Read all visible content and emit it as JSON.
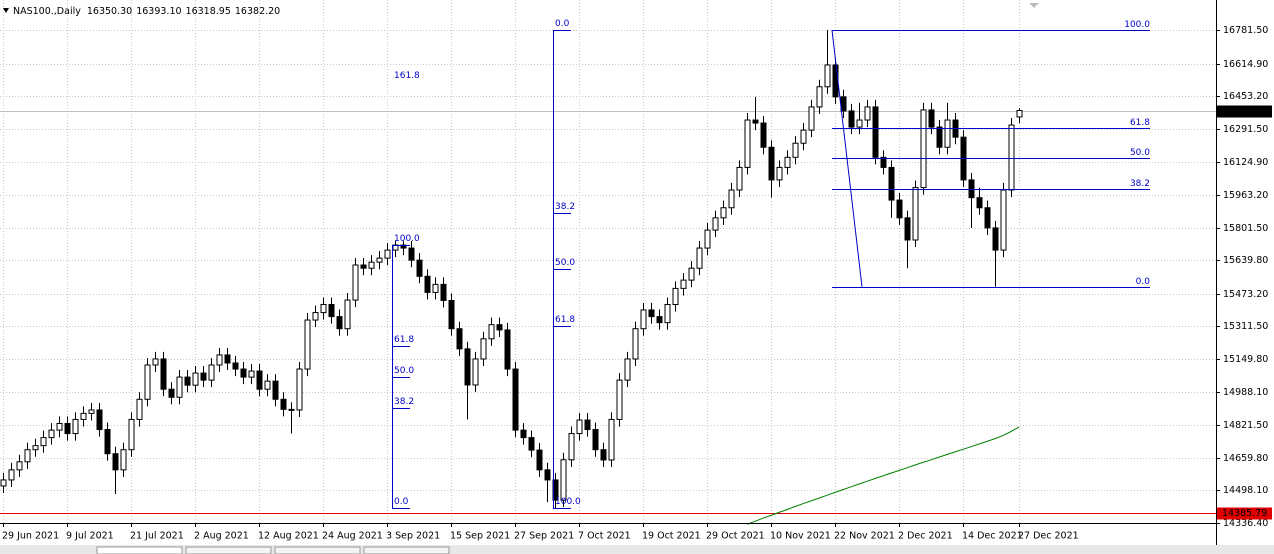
{
  "chart_data": {
    "type": "candlestick",
    "title": "NAS100.,Daily",
    "quote_labels": [
      "16350.30",
      "16393.10",
      "16318.95",
      "16382.20"
    ],
    "categories": [
      "29 Jun 2021",
      null,
      null,
      null,
      null,
      null,
      null,
      null,
      "9 Jul 2021",
      null,
      null,
      null,
      null,
      null,
      null,
      null,
      "21 Jul 2021",
      null,
      null,
      null,
      null,
      null,
      null,
      null,
      "2 Aug 2021",
      null,
      null,
      null,
      null,
      null,
      null,
      null,
      "12 Aug 2021",
      null,
      null,
      null,
      null,
      null,
      null,
      null,
      "24 Aug 2021",
      null,
      null,
      null,
      null,
      null,
      null,
      null,
      "3 Sep 2021",
      null,
      null,
      null,
      null,
      null,
      null,
      null,
      "15 Sep 2021",
      null,
      null,
      null,
      null,
      null,
      null,
      null,
      "27 Sep 2021",
      null,
      null,
      null,
      null,
      null,
      null,
      null,
      "7 Oct 2021",
      null,
      null,
      null,
      null,
      null,
      null,
      null,
      "19 Oct 2021",
      null,
      null,
      null,
      null,
      null,
      null,
      null,
      "29 Oct 2021",
      null,
      null,
      null,
      null,
      null,
      null,
      null,
      "10 Nov 2021",
      null,
      null,
      null,
      null,
      null,
      null,
      null,
      "22 Nov 2021",
      null,
      null,
      null,
      null,
      null,
      null,
      null,
      "2 Dec 2021",
      null,
      null,
      null,
      null,
      null,
      null,
      null,
      "14 Dec 2021",
      null,
      null,
      null,
      null,
      null,
      null,
      "27 Dec 2021"
    ],
    "open": [
      14520,
      14550,
      14600,
      14640,
      14700,
      14720,
      14760,
      14797,
      14830,
      14780,
      14850,
      14880,
      14897,
      14800,
      14680,
      14600,
      14700,
      14850,
      14950,
      15120,
      15150,
      15000,
      14960,
      15060,
      15020,
      15080,
      15045,
      15120,
      15170,
      15130,
      15100,
      15060,
      15090,
      15000,
      15040,
      14950,
      14900,
      14897,
      15100,
      15343,
      15380,
      15420,
      15360,
      15300,
      15442,
      15616,
      15600,
      15630,
      15650,
      15690,
      15715,
      15700,
      15640,
      15560,
      15480,
      15520,
      15440,
      15300,
      15200,
      15021,
      15150,
      15250,
      15320,
      15294,
      15100,
      14797,
      14760,
      14698,
      14600,
      14550,
      14450,
      14650,
      14780,
      14847,
      14800,
      14700,
      14649,
      14850,
      15045,
      15150,
      15300,
      15393,
      15360,
      15330,
      15420,
      15500,
      15541,
      15600,
      15700,
      15789,
      15850,
      15900,
      15988,
      16100,
      16335,
      16320,
      16200,
      16038,
      16100,
      16150,
      16220,
      16285,
      16400,
      16500,
      16608,
      16450,
      16380,
      16300,
      16335,
      16400,
      16150,
      16100,
      15938,
      15850,
      15740,
      16000,
      16385,
      16300,
      16200,
      16335,
      16250,
      16038,
      15950,
      15900,
      15800,
      15690,
      15988,
      16350.3
    ],
    "high": [
      14585,
      14635,
      14675,
      14735,
      14755,
      14795,
      14832,
      14865,
      14865,
      14885,
      14915,
      14932,
      14932,
      14835,
      14715,
      14735,
      14885,
      14985,
      15155,
      15185,
      15185,
      15035,
      15095,
      15095,
      15115,
      15115,
      15155,
      15205,
      15205,
      15165,
      15135,
      15125,
      15125,
      15075,
      15075,
      14985,
      14935,
      15135,
      15378,
      15415,
      15455,
      15455,
      15395,
      15477,
      15651,
      15651,
      15665,
      15685,
      15725,
      15735,
      15735,
      15735,
      15675,
      15595,
      15555,
      15555,
      15475,
      15335,
      15235,
      15185,
      15285,
      15355,
      15355,
      15329,
      15135,
      14832,
      14795,
      14733,
      14635,
      14585,
      14685,
      14815,
      14882,
      14882,
      14835,
      14735,
      14885,
      15080,
      15185,
      15335,
      15428,
      15428,
      15395,
      15455,
      15535,
      15576,
      15635,
      15735,
      15824,
      15885,
      15935,
      16023,
      16135,
      16370,
      16450,
      16355,
      16235,
      16135,
      16185,
      16255,
      16320,
      16435,
      16535,
      16781,
      16643,
      16485,
      16415,
      16420,
      16435,
      16435,
      16185,
      16135,
      15973,
      15885,
      16035,
      16420,
      16420,
      16335,
      16420,
      16370,
      16285,
      16073,
      16000,
      15935,
      15835,
      16023,
      16345,
      16393.1
    ],
    "low": [
      14485,
      14515,
      14565,
      14605,
      14665,
      14685,
      14725,
      14762,
      14745,
      14745,
      14815,
      14845,
      14765,
      14645,
      14480,
      14565,
      14665,
      14815,
      14915,
      15085,
      14965,
      14925,
      14925,
      14985,
      14985,
      15010,
      15010,
      15085,
      15095,
      15065,
      15025,
      15025,
      14965,
      14965,
      14915,
      14865,
      14780,
      14862,
      15065,
      15308,
      15345,
      15325,
      15265,
      15265,
      15407,
      15565,
      15565,
      15595,
      15615,
      15655,
      15665,
      15605,
      15525,
      15445,
      15445,
      15405,
      15265,
      15165,
      14850,
      14986,
      15115,
      15215,
      15259,
      15065,
      14762,
      14725,
      14663,
      14565,
      14440,
      14410,
      14415,
      14615,
      14745,
      14765,
      14665,
      14614,
      14614,
      14815,
      15010,
      15115,
      15265,
      15325,
      15295,
      15295,
      15385,
      15465,
      15506,
      15565,
      15665,
      15754,
      15815,
      15865,
      15953,
      16065,
      16285,
      16165,
      15950,
      16003,
      16065,
      16115,
      16185,
      16250,
      16365,
      16465,
      16415,
      16345,
      16265,
      16265,
      16300,
      16115,
      16065,
      15850,
      15815,
      15600,
      15705,
      15965,
      16265,
      16165,
      16165,
      16215,
      16003,
      15800,
      15865,
      15765,
      15508,
      15655,
      15953,
      16318.95
    ],
    "close": [
      14550,
      14600,
      14640,
      14700,
      14720,
      14760,
      14797,
      14830,
      14780,
      14850,
      14880,
      14897,
      14800,
      14680,
      14600,
      14700,
      14850,
      14950,
      15120,
      15150,
      15000,
      14960,
      15060,
      15020,
      15080,
      15045,
      15120,
      15170,
      15130,
      15100,
      15060,
      15090,
      15000,
      15040,
      14950,
      14900,
      14897,
      15100,
      15343,
      15380,
      15420,
      15360,
      15300,
      15442,
      15616,
      15600,
      15630,
      15650,
      15690,
      15715,
      15700,
      15640,
      15560,
      15480,
      15520,
      15440,
      15300,
      15200,
      15021,
      15150,
      15250,
      15320,
      15294,
      15100,
      14797,
      14760,
      14698,
      14600,
      14550,
      14450,
      14650,
      14780,
      14847,
      14800,
      14700,
      14649,
      14850,
      15045,
      15150,
      15300,
      15393,
      15360,
      15330,
      15420,
      15500,
      15541,
      15600,
      15700,
      15789,
      15850,
      15900,
      15988,
      16100,
      16335,
      16320,
      16200,
      16038,
      16100,
      16150,
      16220,
      16285,
      16400,
      16500,
      16608,
      16450,
      16380,
      16300,
      16335,
      16400,
      16150,
      16100,
      15938,
      15850,
      15740,
      16000,
      16385,
      16300,
      16200,
      16335,
      16250,
      16038,
      15950,
      15900,
      15800,
      15690,
      15988,
      16310,
      16382.2
    ],
    "bull_color": "#ffffff",
    "bear_color": "#000000",
    "ma": {
      "color": "#008000",
      "values": [
        null,
        null,
        null,
        null,
        null,
        null,
        null,
        null,
        null,
        null,
        null,
        null,
        null,
        null,
        null,
        null,
        null,
        null,
        null,
        null,
        null,
        null,
        null,
        null,
        null,
        null,
        null,
        null,
        null,
        null,
        null,
        null,
        null,
        null,
        null,
        null,
        null,
        null,
        null,
        null,
        null,
        null,
        null,
        null,
        null,
        null,
        null,
        null,
        null,
        null,
        null,
        null,
        null,
        null,
        null,
        null,
        null,
        null,
        null,
        null,
        null,
        null,
        null,
        null,
        null,
        null,
        null,
        null,
        null,
        null,
        null,
        null,
        null,
        null,
        null,
        null,
        null,
        null,
        null,
        null,
        null,
        null,
        null,
        null,
        null,
        null,
        null,
        null,
        null,
        null,
        null,
        null,
        null,
        14330,
        14345,
        14360,
        14374,
        14389,
        14403,
        14418,
        14432,
        14446,
        14460,
        14474,
        14488,
        14502,
        14516,
        14530,
        14543,
        14557,
        14570,
        14584,
        14597,
        14610,
        14624,
        14637,
        14650,
        14663,
        14676,
        14689,
        14702,
        14715,
        14728,
        14741,
        14755,
        14770,
        14790,
        14812
      ]
    },
    "ylim": [
      14336.4,
      16930.3
    ],
    "yticks": [
      {
        "value": 16781.5,
        "label": "16781.50"
      },
      {
        "value": 16614.9,
        "label": "16614.90"
      },
      {
        "value": 16453.2,
        "label": "16453.20"
      },
      {
        "value": 16291.5,
        "label": "16291.50"
      },
      {
        "value": 16124.9,
        "label": "16124.90"
      },
      {
        "value": 15963.2,
        "label": "15963.20"
      },
      {
        "value": 15801.5,
        "label": "15801.50"
      },
      {
        "value": 15639.8,
        "label": "15639.80"
      },
      {
        "value": 15473.2,
        "label": "15473.20"
      },
      {
        "value": 15311.5,
        "label": "15311.50"
      },
      {
        "value": 15149.8,
        "label": "15149.80"
      },
      {
        "value": 14988.1,
        "label": "14988.10"
      },
      {
        "value": 14821.5,
        "label": "14821.50"
      },
      {
        "value": 14659.8,
        "label": "14659.80"
      },
      {
        "value": 14498.1,
        "label": "14498.10"
      },
      {
        "value": 14336.4,
        "label": "14336.40"
      }
    ],
    "grid": true,
    "current_price": {
      "value": 16382.2,
      "label": "16382.20",
      "color": "#000000"
    },
    "level_line": {
      "value": 14385.79,
      "color": "#e00000"
    },
    "fib_color": "#0000c8",
    "fibs": [
      {
        "high": 15715,
        "low": 14410,
        "reversed": false,
        "levels": [
          {
            "value": 0,
            "label": "0.0"
          },
          38.2,
          {
            "value": 50,
            "label": "50.0"
          },
          61.8,
          {
            "value": 100,
            "label": "100.0"
          },
          161.8
        ]
      },
      {
        "high": 16781,
        "low": 14410,
        "reversed": true,
        "levels": [
          {
            "value": 0,
            "label": "0.0"
          },
          38.2,
          {
            "value": 50,
            "label": "50.0"
          },
          61.8,
          {
            "value": 100,
            "label": "100.0"
          }
        ]
      },
      {
        "high": 16781,
        "low": 15508,
        "reversed": false,
        "levels": [
          {
            "value": 0,
            "label": "0.0"
          },
          38.2,
          {
            "value": 50,
            "label": "50.0"
          },
          61.8,
          {
            "value": 100,
            "label": "100.0"
          }
        ]
      }
    ]
  }
}
